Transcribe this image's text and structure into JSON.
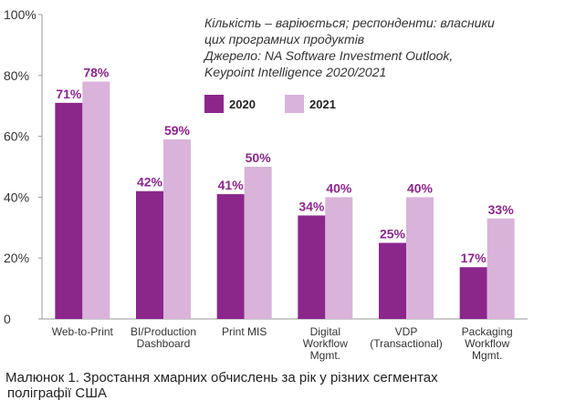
{
  "chart_data": {
    "type": "bar",
    "categories": [
      [
        "Web-to-Print"
      ],
      [
        "BI/Production",
        "Dashboard"
      ],
      [
        "Print MIS"
      ],
      [
        "Digital",
        "Workflow",
        "Mgmt."
      ],
      [
        "VDP",
        "(Transactional)"
      ],
      [
        "Packaging",
        "Workflow",
        "Mgmt."
      ]
    ],
    "series": [
      {
        "name": "2020",
        "color": "#8b268b",
        "values": [
          71,
          42,
          41,
          34,
          25,
          17
        ],
        "labels": [
          "71%",
          "42%",
          "41%",
          "34%",
          "25%",
          "17%"
        ]
      },
      {
        "name": "2021",
        "color": "#d9b3d9",
        "values": [
          78,
          59,
          50,
          40,
          40,
          33
        ],
        "labels": [
          "78%",
          "59%",
          "50%",
          "40%",
          "40%",
          "33%"
        ]
      }
    ],
    "ylim": [
      0,
      100
    ],
    "yticks": [
      0,
      20,
      40,
      60,
      80,
      100
    ],
    "ytick_labels": [
      "0",
      "20%",
      "40%",
      "60%",
      "80%",
      "100%"
    ],
    "grid": false,
    "legend_position": "top-right",
    "notes": [
      "Кількість – варіюється; респонденти: власники",
      "цих програмних продуктів",
      "Джерело: NA Software Investment Outlook,",
      "Keypoint Intelligence 2020/2021"
    ],
    "data_label_color": "#8b268b",
    "axis_color": "#999999"
  },
  "caption": {
    "line1": "Малюнок 1. Зростання хмарних обчислень за рік у різних сегментах",
    "line2": "поліграфії США"
  }
}
